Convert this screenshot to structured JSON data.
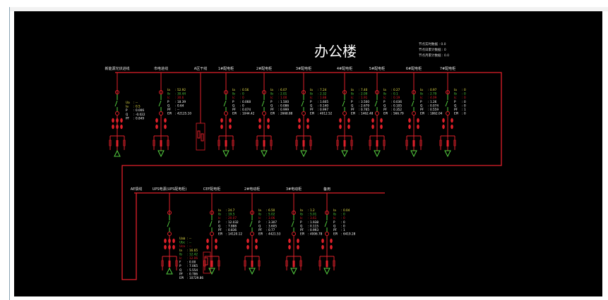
{
  "title": "办公楼",
  "stats": [
    {
      "label": "节点实时数据",
      "value": "0.0"
    },
    {
      "label": "节点日累计数据",
      "value": "0"
    },
    {
      "label": "节点月累计数据",
      "value": "0.0"
    }
  ],
  "colors": {
    "bus": "#e0202a",
    "ia": "#e8e04a",
    "ib": "#55d040",
    "ic": "#e0202a",
    "text": "#ffffff",
    "switch": "#55d040",
    "ground": "#55d040"
  },
  "top_row": {
    "feeders": [
      {
        "name": "新能源光伏进线",
        "type": "incomer",
        "data": [
          [
            "Ua",
            "--"
          ],
          [
            "Ia",
            "0.5"
          ],
          [
            "P",
            "0.006"
          ],
          [
            "Q",
            "-0.022"
          ],
          [
            "PF",
            "0.849"
          ]
        ]
      },
      {
        "name": "市电进线",
        "type": "load",
        "data": [
          [
            "Ia",
            "52.92"
          ],
          [
            "Ib",
            "30.44"
          ],
          [
            "Ic",
            "30.6"
          ],
          [
            "P",
            "18.39"
          ],
          [
            "Q",
            "0.64"
          ],
          [
            "PF",
            "--"
          ],
          [
            "EPI",
            "42125.10"
          ]
        ]
      },
      {
        "name": "A区干线",
        "type": "box",
        "data": []
      },
      {
        "name": "1#配电柜",
        "type": "load",
        "data": [
          [
            "Ia",
            "0.56"
          ],
          [
            "Ib",
            "0"
          ],
          [
            "Ic",
            "0"
          ],
          [
            "P",
            "0.068"
          ],
          [
            "Q",
            "0"
          ],
          [
            "PF",
            "0.074"
          ],
          [
            "EPI",
            "1044.42"
          ]
        ]
      },
      {
        "name": "2#配电柜",
        "type": "load",
        "data": [
          [
            "Ia",
            "6.07"
          ],
          [
            "Ib",
            "2.01"
          ],
          [
            "Ic",
            "1.00"
          ],
          [
            "P",
            "1.500"
          ],
          [
            "Q",
            "0.086"
          ],
          [
            "PF",
            "0.999"
          ],
          [
            "EPI",
            "2668.88"
          ]
        ]
      },
      {
        "name": "3#配电柜",
        "type": "load",
        "data": [
          [
            "Ia",
            "7.24"
          ],
          [
            "Ib",
            "2.32"
          ],
          [
            "Ic",
            "1.88"
          ],
          [
            "P",
            "1.605"
          ],
          [
            "Q",
            "0.140"
          ],
          [
            "PF",
            "0.997"
          ],
          [
            "EPI",
            "4012.52"
          ]
        ]
      },
      {
        "name": "4#配电柜",
        "type": "load",
        "data": [
          [
            "Ia",
            "7.40"
          ],
          [
            "Ib",
            "2.09"
          ],
          [
            "Ic",
            "1.91"
          ],
          [
            "P",
            "3.500"
          ],
          [
            "Q",
            "2.679"
          ],
          [
            "PF",
            "0.765"
          ],
          [
            "EPI",
            "1462.48"
          ]
        ]
      },
      {
        "name": "5#配电柜",
        "type": "load",
        "data": [
          [
            "Ia",
            "0.27"
          ],
          [
            "Ib",
            "0.1"
          ],
          [
            "Ic",
            "0.19"
          ],
          [
            "P",
            "0.036"
          ],
          [
            "Q",
            "0.105"
          ],
          [
            "PF",
            "0.352"
          ],
          [
            "EPI",
            "566.79"
          ]
        ]
      },
      {
        "name": "6#配电柜",
        "type": "load",
        "data": [
          [
            "Ia",
            "0.97"
          ],
          [
            "Ib",
            "2.79"
          ],
          [
            "Ic",
            "4.09"
          ],
          [
            "P",
            "1.26"
          ],
          [
            "Q",
            "0.074"
          ],
          [
            "PF",
            "0.559"
          ],
          [
            "EPI",
            "1862.04"
          ]
        ]
      },
      {
        "name": "7#配电柜",
        "type": "load",
        "data": [
          [
            "Ia",
            "0"
          ],
          [
            "Ib",
            "0"
          ],
          [
            "Ic",
            "0"
          ],
          [
            "P",
            "0"
          ],
          [
            "Q",
            "0"
          ],
          [
            "PF",
            "1"
          ],
          [
            "EPI",
            "0"
          ]
        ]
      }
    ]
  },
  "bottom_row": {
    "feeders": [
      {
        "name": "AE馈线",
        "type": "tie",
        "data": []
      },
      {
        "name": "UPS电源(UPS配电柜)",
        "type": "incomer",
        "data": [
          [
            "Uab",
            "--"
          ],
          [
            "Ubc",
            "--"
          ],
          [
            "Uca",
            "--"
          ],
          [
            "Ia",
            "16.65"
          ],
          [
            "Ib",
            "12.42"
          ],
          [
            "Ic",
            "12.06"
          ],
          [
            "F",
            "0.00"
          ],
          [
            "P",
            "7.065"
          ],
          [
            "Q",
            "5.554"
          ],
          [
            "PF",
            "0.786"
          ],
          [
            "EPI",
            "10729.86"
          ]
        ]
      },
      {
        "name": "CEF配电柜",
        "type": "loadbox",
        "data": [
          [
            "Ia",
            "24.7"
          ],
          [
            "Ib",
            "19.5"
          ],
          [
            "Ic",
            "20.07"
          ],
          [
            "P",
            "12.032"
          ],
          [
            "Q",
            "7.888"
          ],
          [
            "PF",
            "0.836"
          ],
          [
            "EPI",
            "14120.12"
          ]
        ]
      },
      {
        "name": "2#电动柜",
        "type": "load",
        "data": [
          [
            "Ia",
            "6.50"
          ],
          [
            "Ib",
            "5.02"
          ],
          [
            "Ic",
            "3.06"
          ],
          [
            "P",
            "3.307"
          ],
          [
            "Q",
            "3.605"
          ],
          [
            "PF",
            "0.77"
          ],
          [
            "EPI",
            "4421.53"
          ]
        ]
      },
      {
        "name": "3#电动柜",
        "type": "load",
        "data": [
          [
            "Ia",
            "1.2"
          ],
          [
            "Ib",
            "5.01"
          ],
          [
            "Ic",
            "3.61"
          ],
          [
            "P",
            "1.938"
          ],
          [
            "Q",
            "0.115"
          ],
          [
            "PF",
            "0.993"
          ],
          [
            "EPI",
            "4006.78"
          ]
        ]
      },
      {
        "name": "备用",
        "type": "load",
        "data": [
          [
            "Ia",
            "0.04"
          ],
          [
            "Ib",
            "0"
          ],
          [
            "Ic",
            "0"
          ],
          [
            "P",
            "0"
          ],
          [
            "Q",
            "0"
          ],
          [
            "PF",
            "1"
          ],
          [
            "EPI",
            "6419.28"
          ]
        ]
      }
    ]
  }
}
